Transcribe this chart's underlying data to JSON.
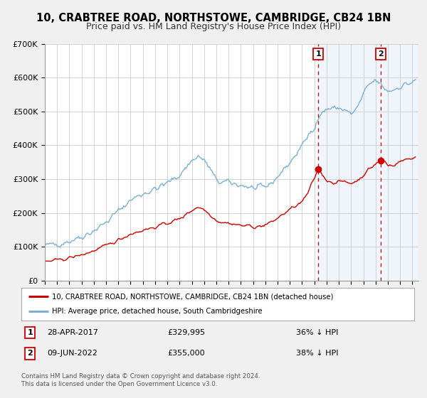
{
  "title": "10, CRABTREE ROAD, NORTHSTOWE, CAMBRIDGE, CB24 1BN",
  "subtitle": "Price paid vs. HM Land Registry's House Price Index (HPI)",
  "red_label": "10, CRABTREE ROAD, NORTHSTOWE, CAMBRIDGE, CB24 1BN (detached house)",
  "blue_label": "HPI: Average price, detached house, South Cambridgeshire",
  "annotation1_date": "28-APR-2017",
  "annotation1_price": "£329,995",
  "annotation1_pct": "36% ↓ HPI",
  "annotation2_date": "09-JUN-2022",
  "annotation2_price": "£355,000",
  "annotation2_pct": "38% ↓ HPI",
  "footer1": "Contains HM Land Registry data © Crown copyright and database right 2024.",
  "footer2": "This data is licensed under the Open Government Licence v3.0.",
  "ylim": [
    0,
    700000
  ],
  "yticks": [
    0,
    100000,
    200000,
    300000,
    400000,
    500000,
    600000,
    700000
  ],
  "ytick_labels": [
    "£0",
    "£100K",
    "£200K",
    "£300K",
    "£400K",
    "£500K",
    "£600K",
    "£700K"
  ],
  "xlim_start": 1995.0,
  "xlim_end": 2025.5,
  "marker1_x": 2017.32,
  "marker1_y": 329995,
  "marker2_x": 2022.44,
  "marker2_y": 355000,
  "vline1_x": 2017.32,
  "vline2_x": 2022.44,
  "red_color": "#cc0000",
  "blue_color": "#7ab0d4",
  "vline_color": "#cc0000",
  "grid_color": "#cccccc",
  "background_color": "#f0f0f0",
  "plot_bg": "#ffffff",
  "annotation_box_color": "#cc0000",
  "title_fontsize": 10.5,
  "subtitle_fontsize": 9.0,
  "legend_border_color": "#aaaaaa",
  "hpi_blue_shade": "#dce8f5"
}
